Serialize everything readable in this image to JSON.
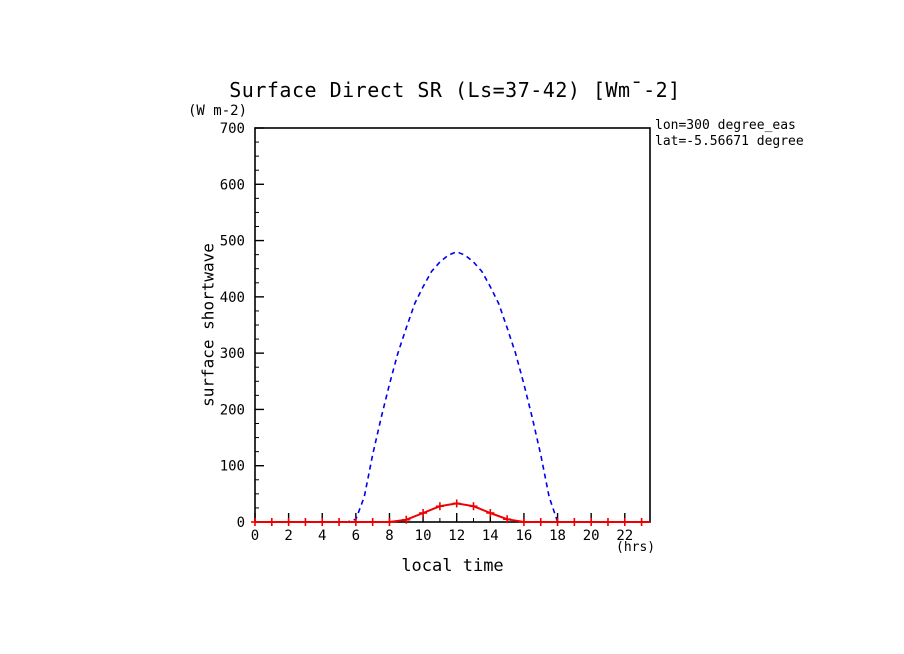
{
  "title": "Surface Direct SR (Ls=37-42) [Wm¯-2]",
  "labels": {
    "y_unit": "(W m-2)",
    "y_axis": "surface shortwave",
    "x_axis": "local time",
    "x_unit": "(hrs)"
  },
  "annotation": {
    "lon": "lon=300 degree_eas",
    "lat": "lat=-5.56671 degree"
  },
  "chart_data": {
    "type": "line",
    "title": "Surface Direct SR (Ls=37-42) [Wm¯-2]",
    "xlabel": "local time (hrs)",
    "ylabel": "surface shortwave (W m-2)",
    "xlim": [
      0,
      23.5
    ],
    "ylim": [
      0,
      700
    ],
    "x_ticks_major": [
      0,
      2,
      4,
      6,
      8,
      10,
      12,
      14,
      16,
      18,
      20,
      22
    ],
    "x_minor_step": 1,
    "y_ticks_major": [
      0,
      100,
      200,
      300,
      400,
      500,
      600,
      700
    ],
    "y_major_step": 100,
    "y_minor_step": 25,
    "grid": false,
    "legend": "none",
    "series": [
      {
        "name": "blue-dashed-curve",
        "color": "#0000ee",
        "style": "dashed",
        "marker": "none",
        "width": 1.6,
        "x": [
          0,
          5.5,
          6,
          6.5,
          7,
          7.5,
          8,
          8.5,
          9,
          9.5,
          10,
          10.5,
          11,
          11.5,
          12,
          12.5,
          13,
          13.5,
          14,
          14.5,
          15,
          15.5,
          16,
          16.5,
          17,
          17.5,
          18,
          23.5
        ],
        "y": [
          0,
          0,
          5,
          45,
          120,
          185,
          245,
          300,
          345,
          388,
          418,
          445,
          462,
          474,
          480,
          474,
          462,
          445,
          418,
          388,
          345,
          300,
          245,
          185,
          120,
          45,
          0,
          0
        ]
      },
      {
        "name": "red-solid-curve",
        "color": "#ee0000",
        "style": "solid",
        "marker": "plus",
        "width": 2,
        "x": [
          0,
          1,
          2,
          3,
          4,
          5,
          6,
          7,
          8,
          9,
          10,
          11,
          12,
          13,
          14,
          15,
          16,
          17,
          18,
          19,
          20,
          21,
          22,
          23,
          23.5
        ],
        "y": [
          0,
          0,
          0,
          0,
          0,
          0,
          0,
          0,
          0,
          4,
          16,
          28,
          33,
          28,
          16,
          5,
          0,
          0,
          0,
          0,
          0,
          0,
          0,
          0,
          0
        ]
      }
    ]
  }
}
